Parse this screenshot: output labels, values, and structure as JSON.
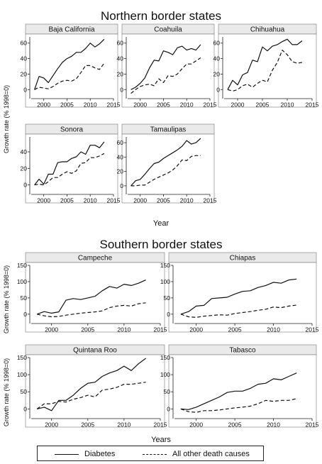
{
  "figure": {
    "sections": [
      {
        "title": "Northern border states",
        "ylabel": "Growth rate (% 1998=0)",
        "xlabel": "Year"
      },
      {
        "title": "Southern border states",
        "ylabel": "Growth rate (% 1998=0)",
        "xlabel": "Years"
      }
    ],
    "legend": [
      {
        "label": "Diabetes",
        "style": "solid"
      },
      {
        "label": "All other death causes",
        "style": "dashed"
      }
    ]
  },
  "chart_data": [
    {
      "type": "line",
      "title": "Baja California",
      "section": "Northern border states",
      "x": [
        1998,
        1999,
        2000,
        2001,
        2002,
        2003,
        2004,
        2005,
        2006,
        2007,
        2008,
        2009,
        2010,
        2011,
        2012,
        2013
      ],
      "xlim": [
        1997,
        2015
      ],
      "ylim": [
        -8,
        68
      ],
      "xticks": [
        2000,
        2005,
        2010,
        2015
      ],
      "yticks": [
        0,
        20,
        40,
        60
      ],
      "series": [
        {
          "name": "Diabetes",
          "values": [
            0,
            17,
            15,
            9,
            18,
            27,
            35,
            40,
            43,
            48,
            48,
            53,
            60,
            55,
            59,
            65
          ]
        },
        {
          "name": "All other death causes",
          "values": [
            0,
            3,
            2,
            1,
            4,
            8,
            11,
            12,
            11,
            14,
            22,
            31,
            31,
            28,
            26,
            34
          ]
        }
      ]
    },
    {
      "type": "line",
      "title": "Coahuila",
      "section": "Northern border states",
      "x": [
        1998,
        1999,
        2000,
        2001,
        2002,
        2003,
        2004,
        2005,
        2006,
        2007,
        2008,
        2009,
        2010,
        2011,
        2012,
        2013
      ],
      "xlim": [
        1997,
        2015
      ],
      "ylim": [
        -8,
        68
      ],
      "xticks": [
        2000,
        2005,
        2010,
        2015
      ],
      "yticks": [
        0,
        20,
        40,
        60
      ],
      "series": [
        {
          "name": "Diabetes",
          "values": [
            0,
            3,
            8,
            15,
            28,
            38,
            37,
            50,
            48,
            45,
            54,
            56,
            51,
            53,
            51,
            58
          ]
        },
        {
          "name": "All other death causes",
          "values": [
            -5,
            0,
            4,
            6,
            7,
            5,
            14,
            9,
            18,
            17,
            20,
            27,
            33,
            33,
            37,
            41
          ]
        }
      ]
    },
    {
      "type": "line",
      "title": "Chihuahua",
      "section": "Northern border states",
      "x": [
        1998,
        1999,
        2000,
        2001,
        2002,
        2003,
        2004,
        2005,
        2006,
        2007,
        2008,
        2009,
        2010,
        2011,
        2012,
        2013
      ],
      "xlim": [
        1997,
        2015
      ],
      "ylim": [
        -8,
        68
      ],
      "xticks": [
        2000,
        2005,
        2010,
        2015
      ],
      "yticks": [
        0,
        20,
        40,
        60
      ],
      "series": [
        {
          "name": "Diabetes",
          "values": [
            0,
            12,
            6,
            19,
            22,
            38,
            36,
            55,
            50,
            56,
            58,
            62,
            65,
            58,
            58,
            63
          ]
        },
        {
          "name": "All other death causes",
          "values": [
            0,
            -2,
            0,
            5,
            7,
            3,
            8,
            12,
            10,
            25,
            35,
            51,
            45,
            36,
            34,
            35
          ]
        }
      ]
    },
    {
      "type": "line",
      "title": "Sonora",
      "section": "Northern border states",
      "x": [
        1998,
        1999,
        2000,
        2001,
        2002,
        2003,
        2004,
        2005,
        2006,
        2007,
        2008,
        2009,
        2010,
        2011,
        2012,
        2013
      ],
      "xlim": [
        1997,
        2015
      ],
      "ylim": [
        -8,
        58
      ],
      "xticks": [
        2000,
        2005,
        2010,
        2015
      ],
      "yticks": [
        0,
        20,
        40
      ],
      "series": [
        {
          "name": "Diabetes",
          "values": [
            0,
            7,
            1,
            13,
            13,
            27,
            28,
            28,
            32,
            34,
            40,
            37,
            48,
            48,
            45,
            52
          ]
        },
        {
          "name": "All other death causes",
          "values": [
            0,
            1,
            0,
            4,
            9,
            9,
            13,
            16,
            14,
            17,
            26,
            27,
            33,
            33,
            35,
            38
          ]
        }
      ]
    },
    {
      "type": "line",
      "title": "Tamaulipas",
      "section": "Northern border states",
      "x": [
        1998,
        1999,
        2000,
        2001,
        2002,
        2003,
        2004,
        2005,
        2006,
        2007,
        2008,
        2009,
        2010,
        2011,
        2012,
        2013
      ],
      "xlim": [
        1997,
        2015
      ],
      "ylim": [
        -8,
        68
      ],
      "xticks": [
        2000,
        2005,
        2010,
        2015
      ],
      "yticks": [
        0,
        20,
        40,
        60
      ],
      "series": [
        {
          "name": "Diabetes",
          "values": [
            0,
            7,
            9,
            16,
            24,
            31,
            33,
            38,
            42,
            46,
            50,
            55,
            63,
            58,
            60,
            66
          ]
        },
        {
          "name": "All other death causes",
          "values": [
            0,
            0,
            1,
            1,
            5,
            9,
            12,
            15,
            18,
            22,
            28,
            36,
            35,
            41,
            42,
            42
          ]
        }
      ]
    },
    {
      "type": "line",
      "title": "Campeche",
      "section": "Southern border states",
      "x": [
        1998,
        1999,
        2000,
        2001,
        2002,
        2003,
        2004,
        2005,
        2006,
        2007,
        2008,
        2009,
        2010,
        2011,
        2012,
        2013
      ],
      "xlim": [
        1997,
        2015
      ],
      "ylim": [
        -20,
        150
      ],
      "xticks": [
        2000,
        2005,
        2010,
        2015
      ],
      "yticks": [
        0,
        50,
        100,
        150
      ],
      "series": [
        {
          "name": "Diabetes",
          "values": [
            0,
            8,
            3,
            7,
            43,
            48,
            45,
            50,
            55,
            72,
            85,
            80,
            92,
            88,
            95,
            105
          ]
        },
        {
          "name": "All other death causes",
          "values": [
            0,
            -5,
            -8,
            -7,
            -3,
            0,
            3,
            5,
            7,
            10,
            20,
            25,
            27,
            25,
            32,
            35
          ]
        }
      ]
    },
    {
      "type": "line",
      "title": "Chiapas",
      "section": "Southern border states",
      "x": [
        1998,
        1999,
        2000,
        2001,
        2002,
        2003,
        2004,
        2005,
        2006,
        2007,
        2008,
        2009,
        2010,
        2011,
        2012,
        2013
      ],
      "xlim": [
        1997,
        2015
      ],
      "ylim": [
        -20,
        150
      ],
      "xticks": [
        2000,
        2005,
        2010,
        2015
      ],
      "yticks": [
        0,
        50,
        100,
        150
      ],
      "series": [
        {
          "name": "Diabetes",
          "values": [
            0,
            8,
            25,
            27,
            48,
            50,
            52,
            62,
            70,
            72,
            82,
            88,
            98,
            95,
            105,
            108
          ]
        },
        {
          "name": "All other death causes",
          "values": [
            0,
            -8,
            -10,
            -6,
            -4,
            -2,
            -3,
            2,
            5,
            8,
            12,
            15,
            22,
            20,
            25,
            28
          ]
        }
      ]
    },
    {
      "type": "line",
      "title": "Quintana Roo",
      "section": "Southern border states",
      "x": [
        1998,
        1999,
        2000,
        2001,
        2002,
        2003,
        2004,
        2005,
        2006,
        2007,
        2008,
        2009,
        2010,
        2011,
        2012,
        2013
      ],
      "xlim": [
        1997,
        2015
      ],
      "ylim": [
        -20,
        150
      ],
      "xticks": [
        2000,
        2005,
        2010,
        2015
      ],
      "yticks": [
        0,
        50,
        100,
        150
      ],
      "series": [
        {
          "name": "Diabetes",
          "values": [
            0,
            5,
            -5,
            25,
            25,
            40,
            60,
            75,
            78,
            95,
            105,
            112,
            125,
            112,
            132,
            148
          ]
        },
        {
          "name": "All other death causes",
          "values": [
            0,
            15,
            15,
            22,
            20,
            28,
            33,
            40,
            35,
            55,
            58,
            63,
            72,
            72,
            75,
            78
          ]
        }
      ]
    },
    {
      "type": "line",
      "title": "Tabasco",
      "section": "Southern border states",
      "x": [
        1998,
        1999,
        2000,
        2001,
        2002,
        2003,
        2004,
        2005,
        2006,
        2007,
        2008,
        2009,
        2010,
        2011,
        2012,
        2013
      ],
      "xlim": [
        1997,
        2015
      ],
      "ylim": [
        -20,
        150
      ],
      "xticks": [
        2000,
        2005,
        2010,
        2015
      ],
      "yticks": [
        0,
        50,
        100,
        150
      ],
      "series": [
        {
          "name": "Diabetes",
          "values": [
            0,
            -2,
            5,
            15,
            25,
            35,
            48,
            52,
            52,
            60,
            72,
            75,
            88,
            85,
            95,
            105
          ]
        },
        {
          "name": "All other death causes",
          "values": [
            0,
            -8,
            -10,
            -5,
            -5,
            -3,
            0,
            3,
            5,
            8,
            15,
            25,
            22,
            25,
            25,
            30
          ]
        }
      ]
    }
  ]
}
